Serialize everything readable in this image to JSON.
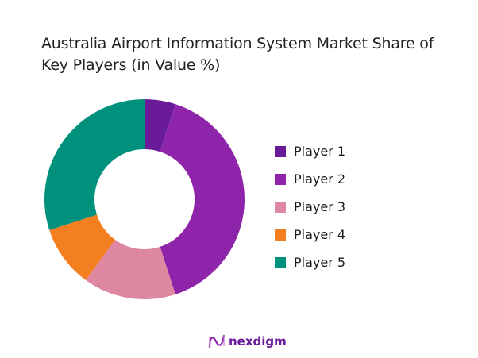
{
  "title": "Australia Airport Information System Market Share of Key Players (in Value %)",
  "title_lines": [
    "Australia Airport Information System Market Share of",
    "Key Players (in Value %)"
  ],
  "chart_data": {
    "type": "pie",
    "subtype": "donut",
    "title": "Australia Airport Information System Market Share of Key Players (in Value %)",
    "categories": [
      "Player 1",
      "Player 2",
      "Player 3",
      "Player 4",
      "Player 5"
    ],
    "values": [
      5,
      40,
      15,
      10,
      30
    ],
    "colors": [
      "#6a1b9a",
      "#8e24aa",
      "#de87a0",
      "#f47f20",
      "#00917c"
    ],
    "legend_position": "right",
    "unit": "%"
  },
  "legend": [
    {
      "label": "Player 1",
      "color": "#6a1b9a"
    },
    {
      "label": "Player 2",
      "color": "#8e24aa"
    },
    {
      "label": "Player 3",
      "color": "#de87a0"
    },
    {
      "label": "Player 4",
      "color": "#f47f20"
    },
    {
      "label": "Player 5",
      "color": "#00917c"
    }
  ],
  "logo": {
    "text": "nexdigm",
    "color": "#6a1b9a"
  }
}
